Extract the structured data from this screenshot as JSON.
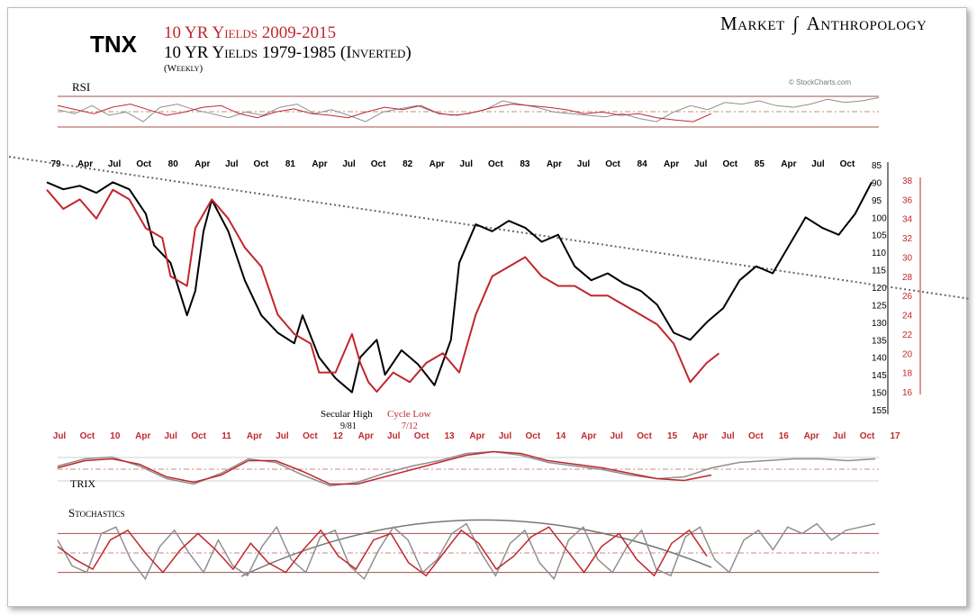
{
  "header": {
    "ticker": "TNX",
    "title_red": "10 YR Yields 2009-2015",
    "title_black": "10 YR Yields 1979-1985 (Inverted)",
    "frequency": "(Weekly)",
    "brand_left": "Market",
    "brand_right": "Anthropology",
    "watermark": "© StockCharts.com"
  },
  "colors": {
    "red": "#c1272d",
    "black": "#000000",
    "gray": "#8f8f8f",
    "lightred": "#d98a8a"
  },
  "chart_data": [
    {
      "type": "line",
      "title": "",
      "panel": "main",
      "series": [
        {
          "name": "10 YR Yields 1979-1985 (Inverted)",
          "axis": "left-inverted",
          "x": [
            0,
            0.02,
            0.04,
            0.06,
            0.08,
            0.1,
            0.12,
            0.13,
            0.15,
            0.17,
            0.18,
            0.19,
            0.2,
            0.22,
            0.24,
            0.26,
            0.28,
            0.3,
            0.31,
            0.33,
            0.35,
            0.37,
            0.38,
            0.4,
            0.41,
            0.43,
            0.45,
            0.47,
            0.49,
            0.5,
            0.52,
            0.54,
            0.56,
            0.58,
            0.6,
            0.62,
            0.64,
            0.66,
            0.68,
            0.7,
            0.72,
            0.74,
            0.76,
            0.78,
            0.8,
            0.82,
            0.84,
            0.86,
            0.88,
            0.9,
            0.92,
            0.94,
            0.96,
            0.98,
            1.0
          ],
          "values": [
            90,
            92,
            91,
            93,
            90,
            92,
            99,
            108,
            113,
            128,
            121,
            104,
            95,
            104,
            118,
            128,
            133,
            136,
            128,
            140,
            146,
            150,
            140,
            135,
            145,
            138,
            142,
            148,
            135,
            113,
            102,
            104,
            101,
            103,
            107,
            105,
            114,
            118,
            116,
            119,
            121,
            125,
            133,
            135,
            130,
            126,
            118,
            114,
            116,
            108,
            100,
            103,
            105,
            99,
            90
          ]
        },
        {
          "name": "10 YR Yields 2009-2015",
          "axis": "right",
          "x": [
            0,
            0.02,
            0.04,
            0.06,
            0.08,
            0.1,
            0.12,
            0.14,
            0.15,
            0.17,
            0.18,
            0.2,
            0.22,
            0.24,
            0.26,
            0.28,
            0.3,
            0.32,
            0.33,
            0.35,
            0.37,
            0.38,
            0.39,
            0.4,
            0.42,
            0.44,
            0.46,
            0.48,
            0.5,
            0.52,
            0.54,
            0.56,
            0.58,
            0.6,
            0.62,
            0.64,
            0.66,
            0.68,
            0.7,
            0.72,
            0.74,
            0.76,
            0.78,
            0.8,
            0.815
          ],
          "values": [
            37,
            35,
            36,
            34,
            37,
            36,
            33,
            32,
            28,
            27,
            33,
            36,
            34,
            31,
            29,
            24,
            22,
            21,
            18,
            18,
            22,
            19,
            17,
            16,
            18,
            17,
            19,
            20,
            18,
            24,
            28,
            29,
            30,
            28,
            27,
            27,
            26,
            26,
            25,
            24,
            23,
            21,
            17,
            19,
            20
          ]
        }
      ],
      "x_top_ticks": [
        "79",
        "Apr",
        "Jul",
        "Oct",
        "80",
        "Apr",
        "Jul",
        "Oct",
        "81",
        "Apr",
        "Jul",
        "Oct",
        "82",
        "Apr",
        "Jul",
        "Oct",
        "83",
        "Apr",
        "Jul",
        "Oct",
        "84",
        "Apr",
        "Jul",
        "Oct",
        "85",
        "Apr",
        "Jul",
        "Oct"
      ],
      "x_bottom_ticks": [
        "Jul",
        "Oct",
        "10",
        "Apr",
        "Jul",
        "Oct",
        "11",
        "Apr",
        "Jul",
        "Oct",
        "12",
        "Apr",
        "Jul",
        "Oct",
        "13",
        "Apr",
        "Jul",
        "Oct",
        "14",
        "Apr",
        "Jul",
        "Oct",
        "15",
        "Apr",
        "Jul",
        "Oct",
        "16",
        "Apr",
        "Jul",
        "Oct",
        "17"
      ],
      "left_axis": {
        "ticks": [
          85,
          90,
          95,
          100,
          105,
          110,
          115,
          120,
          125,
          130,
          135,
          140,
          145,
          150,
          155
        ],
        "inverted": true
      },
      "right_axis": {
        "ticks": [
          16,
          18,
          20,
          22,
          24,
          26,
          28,
          30,
          32,
          34,
          36,
          38
        ]
      },
      "trendline": "dotted downward trendline",
      "annotations": [
        {
          "text": "Secular High",
          "sub": "9/81",
          "color": "#000000"
        },
        {
          "text": "Cycle Low",
          "sub": "7/12",
          "color": "#c1272d"
        }
      ]
    },
    {
      "type": "line",
      "panel": "RSI",
      "title": "RSI",
      "series": [
        {
          "name": "",
          "color": "gray",
          "values": [
            55,
            50,
            60,
            48,
            52,
            40,
            58,
            62,
            55,
            50,
            45,
            52,
            48,
            58,
            62,
            50,
            55,
            48,
            40,
            52,
            56,
            60,
            52,
            48,
            50,
            55,
            66,
            62,
            58,
            52,
            50,
            48,
            46,
            50,
            44,
            40,
            52,
            60,
            55,
            64,
            62,
            66,
            60,
            58,
            62,
            68,
            64,
            66,
            70
          ]
        },
        {
          "name": "",
          "color": "red",
          "values": [
            60,
            55,
            50,
            58,
            62,
            55,
            48,
            52,
            58,
            60,
            50,
            45,
            52,
            56,
            50,
            48,
            45,
            52,
            58,
            55,
            60,
            50,
            48,
            52,
            58,
            62,
            60,
            58,
            55,
            50,
            52,
            48,
            50,
            45,
            42,
            40,
            50
          ]
        }
      ]
    },
    {
      "type": "line",
      "panel": "TRIX",
      "title": "TRIX",
      "series": [
        {
          "name": "",
          "color": "gray",
          "values": [
            0.2,
            0.6,
            0.7,
            0.2,
            -0.5,
            -0.8,
            -0.2,
            0.6,
            0.4,
            -0.3,
            -0.9,
            -0.7,
            -0.2,
            0.2,
            0.5,
            0.9,
            1.0,
            0.8,
            0.4,
            0.2,
            0,
            -0.3,
            -0.5,
            -0.4,
            0.1,
            0.4,
            0.5,
            0.6,
            0.6,
            0.5,
            0.6
          ]
        },
        {
          "name": "",
          "color": "red",
          "values": [
            0.1,
            0.5,
            0.6,
            0.3,
            -0.4,
            -0.7,
            -0.3,
            0.5,
            0.5,
            -0.1,
            -0.8,
            -0.8,
            -0.4,
            0,
            0.4,
            0.8,
            1.0,
            0.9,
            0.5,
            0.3,
            0.1,
            -0.2,
            -0.5,
            -0.6,
            -0.3
          ]
        }
      ]
    },
    {
      "type": "line",
      "panel": "Stochastics",
      "title": "Stochastics",
      "series": [
        {
          "name": "",
          "color": "gray",
          "values": [
            70,
            30,
            20,
            80,
            90,
            40,
            10,
            60,
            85,
            50,
            20,
            70,
            30,
            15,
            60,
            90,
            40,
            20,
            75,
            85,
            30,
            10,
            55,
            90,
            70,
            20,
            40,
            80,
            95,
            50,
            15,
            65,
            85,
            35,
            10,
            70,
            90,
            40,
            20,
            60,
            85,
            25,
            15,
            75,
            90,
            40,
            20,
            70,
            85,
            55,
            90,
            80,
            95,
            70,
            85,
            90,
            95
          ]
        },
        {
          "name": "",
          "color": "red",
          "values": [
            60,
            40,
            25,
            70,
            85,
            50,
            20,
            55,
            80,
            55,
            25,
            65,
            35,
            20,
            55,
            85,
            45,
            25,
            70,
            80,
            35,
            15,
            50,
            85,
            65,
            25,
            45,
            75,
            90,
            55,
            20,
            60,
            80,
            40,
            15,
            65,
            85,
            45
          ]
        }
      ],
      "levels": [
        20,
        50,
        80
      ]
    }
  ]
}
